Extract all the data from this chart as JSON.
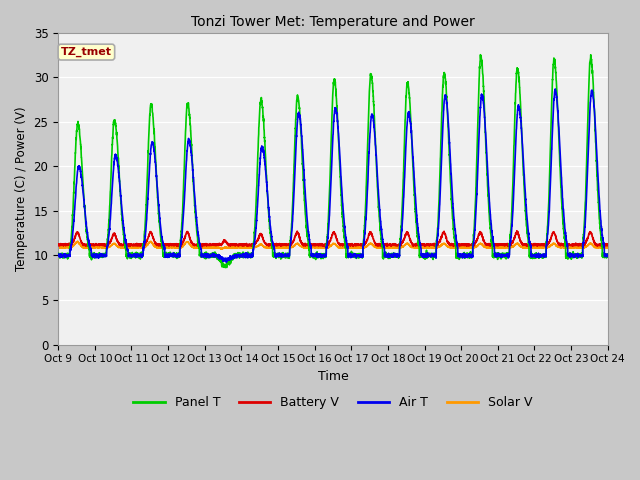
{
  "title": "Tonzi Tower Met: Temperature and Power",
  "xlabel": "Time",
  "ylabel": "Temperature (C) / Power (V)",
  "ylim": [
    0,
    35
  ],
  "annotation": "TZ_tmet",
  "colors": {
    "panel_t": "#00CC00",
    "battery_v": "#DD0000",
    "air_t": "#0000EE",
    "solar_v": "#FF9900"
  },
  "xtick_labels": [
    "Oct 9",
    "Oct 10",
    "Oct 11",
    "Oct 12",
    "Oct 13",
    "Oct 14",
    "Oct 15",
    "Oct 16",
    "Oct 17",
    "Oct 18",
    "Oct 19",
    "Oct 20",
    "Oct 21",
    "Oct 22",
    "Oct 23",
    "Oct 24"
  ],
  "fig_bg": "#C8C8C8",
  "plot_bg": "#F0F0F0",
  "annotation_bg": "#FFFFCC",
  "annotation_border": "#AAAAAA",
  "annotation_text_color": "#990000",
  "grid_color": "#FFFFFF",
  "line_width": 1.2,
  "n_days": 15,
  "samples_per_day": 288,
  "panel_t_night": 10.0,
  "air_t_night": 10.0,
  "battery_v_base": 11.2,
  "solar_v_base": 10.9,
  "panel_t_day_peaks": [
    24.8,
    25.2,
    27.0,
    27.0,
    8.8,
    27.5,
    27.8,
    29.7,
    30.3,
    29.4,
    30.5,
    32.3,
    31.0,
    32.0,
    32.2
  ],
  "air_t_day_peaks": [
    20.0,
    21.3,
    22.7,
    23.0,
    9.5,
    22.2,
    26.0,
    26.5,
    25.8,
    26.0,
    27.9,
    28.0,
    26.7,
    28.5,
    28.5
  ],
  "battery_v_peaks": [
    12.5,
    12.3,
    12.5,
    12.5,
    11.5,
    12.3,
    12.5,
    12.5,
    12.5,
    12.5,
    12.5,
    12.5,
    12.5,
    12.5,
    12.5
  ],
  "solar_v_peaks": [
    11.5,
    11.3,
    11.5,
    11.5,
    10.8,
    11.2,
    11.3,
    11.3,
    11.3,
    11.3,
    11.3,
    11.3,
    11.3,
    11.3,
    11.3
  ]
}
